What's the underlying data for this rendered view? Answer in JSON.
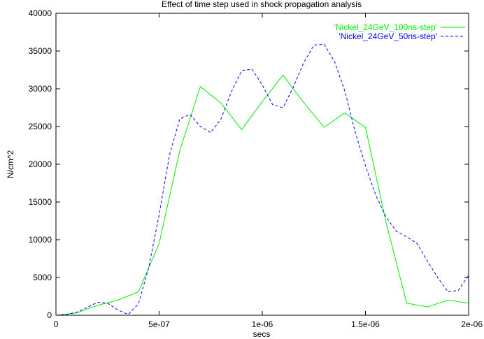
{
  "chart_data": {
    "type": "line",
    "title": "Effect of time step used in shock propagation analysis",
    "xlabel": "secs",
    "ylabel": "N/cm^2",
    "xlim": [
      0,
      2e-06
    ],
    "ylim": [
      0,
      40000
    ],
    "x_ticks": [
      0,
      5e-07,
      1e-06,
      1.5e-06,
      2e-06
    ],
    "x_tick_labels": [
      "0",
      "5e-07",
      "1e-06",
      "1.5e-06",
      "2e-06"
    ],
    "y_ticks": [
      0,
      5000,
      10000,
      15000,
      20000,
      25000,
      30000,
      35000,
      40000
    ],
    "y_tick_labels": [
      "0",
      "5000",
      "10000",
      "15000",
      "20000",
      "25000",
      "30000",
      "35000",
      "40000"
    ],
    "grid": false,
    "legend_position": "top-right",
    "series": [
      {
        "name": "'Nickel_24GeV_100ns-step'",
        "color": "#00ee00",
        "style": "solid",
        "x": [
          0,
          1e-07,
          2e-07,
          3e-07,
          4e-07,
          5e-07,
          6e-07,
          7e-07,
          8e-07,
          9e-07,
          1e-06,
          1.1e-06,
          1.2e-06,
          1.3e-06,
          1.4e-06,
          1.5e-06,
          1.6e-06,
          1.7e-06,
          1.8e-06,
          1.9e-06,
          2e-06
        ],
        "y": [
          0,
          300,
          1300,
          2000,
          3100,
          9500,
          21800,
          30300,
          28100,
          24600,
          28300,
          31800,
          28200,
          24900,
          26800,
          24900,
          12300,
          1600,
          1100,
          2000,
          1600
        ]
      },
      {
        "name": "'Nickel_24GeV_50ns-step'",
        "color": "#0000ff",
        "style": "dashed",
        "x": [
          0,
          5e-08,
          1e-07,
          1.5e-07,
          2e-07,
          2.5e-07,
          3e-07,
          3.5e-07,
          4e-07,
          4.5e-07,
          5e-07,
          5.5e-07,
          6e-07,
          6.5e-07,
          7e-07,
          7.5e-07,
          8e-07,
          8.5e-07,
          9e-07,
          9.5e-07,
          1e-06,
          1.05e-06,
          1.1e-06,
          1.15e-06,
          1.2e-06,
          1.25e-06,
          1.3e-06,
          1.35e-06,
          1.4e-06,
          1.45e-06,
          1.5e-06,
          1.55e-06,
          1.6e-06,
          1.65e-06,
          1.7e-06,
          1.75e-06,
          1.8e-06,
          1.85e-06,
          1.9e-06,
          1.95e-06,
          2e-06
        ],
        "y": [
          0,
          100,
          400,
          1000,
          1700,
          1600,
          700,
          100,
          1500,
          6400,
          13300,
          21200,
          26000,
          26600,
          25000,
          24200,
          26000,
          29600,
          32400,
          32600,
          30500,
          27900,
          27500,
          30200,
          33400,
          35800,
          35900,
          33600,
          29700,
          24300,
          19800,
          15900,
          13000,
          11100,
          10400,
          9500,
          7200,
          5000,
          3100,
          3300,
          5300
        ]
      }
    ]
  }
}
